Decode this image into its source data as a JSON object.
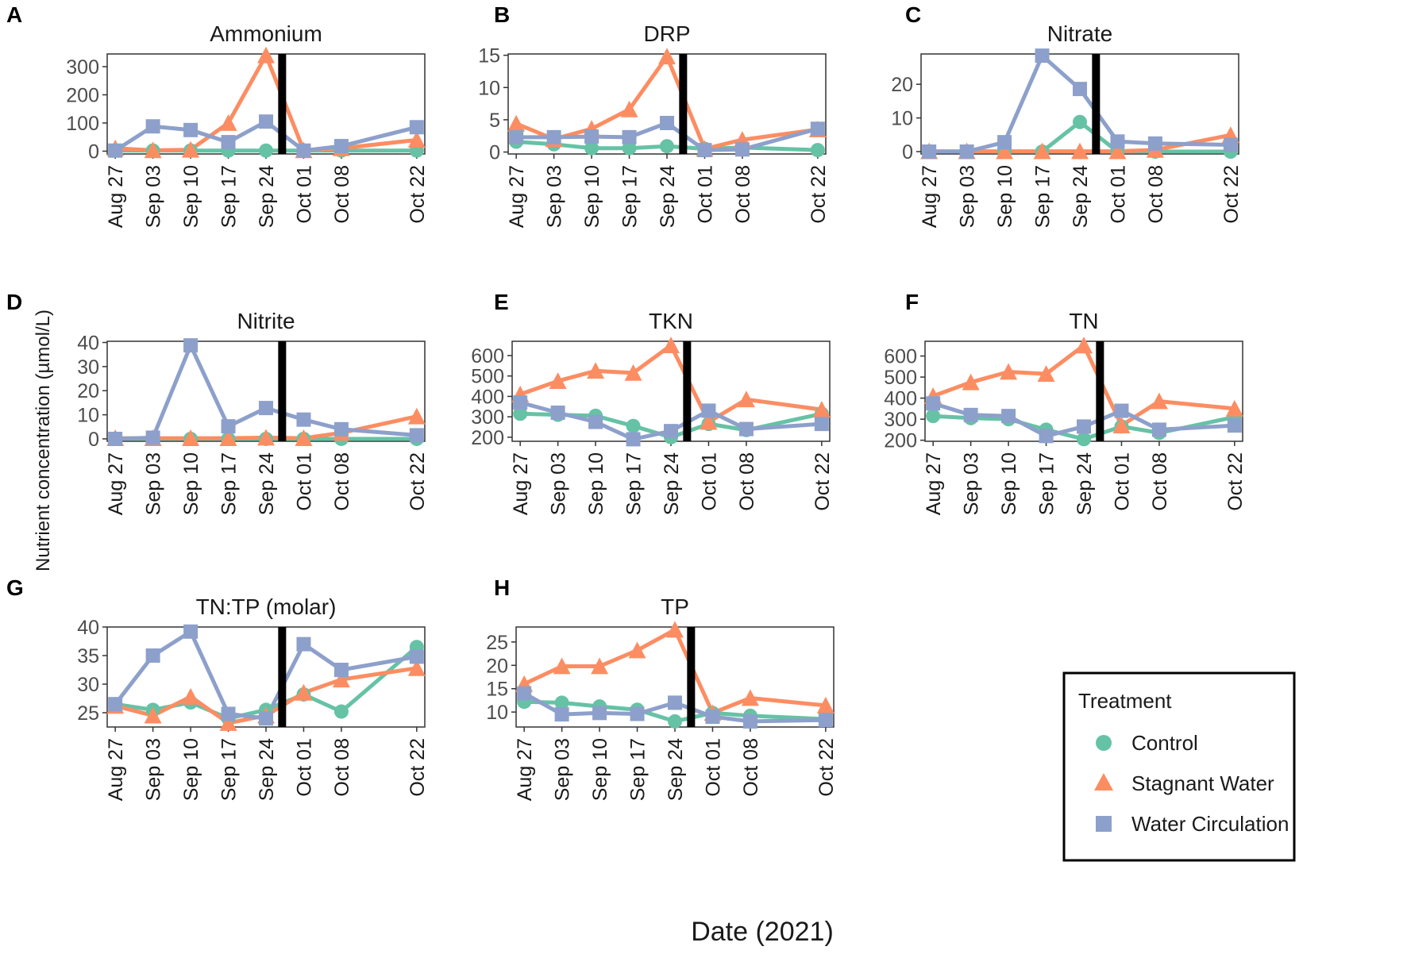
{
  "figure": {
    "xlabel": "Date (2021)",
    "ylabel": "Nutrient concentration (µmol/L)"
  },
  "legend": {
    "title": "Treatment",
    "entries": [
      {
        "name": "Control",
        "color": "#66c2a5",
        "marker": "circle"
      },
      {
        "name": "Stagnant Water",
        "color": "#fc8d62",
        "marker": "triangle"
      },
      {
        "name": "Water Circulation",
        "color": "#8da0cb",
        "marker": "square"
      }
    ]
  },
  "chart_data": [
    {
      "id": "A",
      "tag": "A",
      "type": "line",
      "title": "Ammonium",
      "x": [
        "Aug 27",
        "Sep 03",
        "Sep 10",
        "Sep 17",
        "Sep 24",
        "Oct 01",
        "Oct 08",
        "Oct 22"
      ],
      "x_days": [
        0,
        7,
        14,
        21,
        28,
        35,
        42,
        56
      ],
      "xlim": [
        -1.5,
        57.5
      ],
      "ylim": [
        -10,
        345
      ],
      "yticks": [
        0,
        100,
        200,
        300
      ],
      "intervention_day": 31,
      "series": [
        {
          "name": "Control",
          "values": [
            2,
            2,
            2,
            2,
            2,
            2,
            2,
            2
          ]
        },
        {
          "name": "Stagnant Water",
          "values": [
            10,
            3,
            5,
            100,
            340,
            3,
            10,
            40
          ]
        },
        {
          "name": "Water Circulation",
          "values": [
            2,
            88,
            75,
            32,
            105,
            2,
            18,
            85
          ]
        }
      ]
    },
    {
      "id": "B",
      "tag": "B",
      "type": "line",
      "title": "DRP",
      "x": [
        "Aug 27",
        "Sep 03",
        "Sep 10",
        "Sep 17",
        "Sep 24",
        "Oct 01",
        "Oct 08",
        "Oct 22"
      ],
      "x_days": [
        0,
        7,
        14,
        21,
        28,
        35,
        42,
        56
      ],
      "xlim": [
        -1.5,
        57.5
      ],
      "ylim": [
        -0.3,
        15.2
      ],
      "yticks": [
        0,
        5,
        10,
        15
      ],
      "intervention_day": 31,
      "series": [
        {
          "name": "Control",
          "values": [
            1.6,
            1.2,
            0.6,
            0.6,
            0.9,
            0.5,
            0.7,
            0.3
          ]
        },
        {
          "name": "Stagnant Water",
          "values": [
            4.4,
            2.0,
            3.6,
            6.6,
            14.8,
            0.5,
            1.9,
            3.5
          ]
        },
        {
          "name": "Water Circulation",
          "values": [
            2.3,
            2.3,
            2.4,
            2.3,
            4.5,
            0.3,
            0.4,
            3.6
          ]
        }
      ]
    },
    {
      "id": "C",
      "tag": "C",
      "type": "line",
      "title": "Nitrate",
      "x": [
        "Aug 27",
        "Sep 03",
        "Sep 10",
        "Sep 17",
        "Sep 24",
        "Oct 01",
        "Oct 08",
        "Oct 22"
      ],
      "x_days": [
        0,
        7,
        14,
        21,
        28,
        35,
        42,
        56
      ],
      "xlim": [
        -1.5,
        57.5
      ],
      "ylim": [
        -0.7,
        29
      ],
      "yticks": [
        0,
        10,
        20
      ],
      "intervention_day": 31,
      "series": [
        {
          "name": "Control",
          "values": [
            0,
            0,
            0,
            0,
            8.8,
            0,
            0,
            0
          ]
        },
        {
          "name": "Stagnant Water",
          "values": [
            0.1,
            0.1,
            0.1,
            0.1,
            0.1,
            0.1,
            0.5,
            4.9
          ]
        },
        {
          "name": "Water Circulation",
          "values": [
            0,
            0,
            2.8,
            28.5,
            18.6,
            3.0,
            2.4,
            2.0
          ]
        }
      ]
    },
    {
      "id": "D",
      "tag": "D",
      "type": "line",
      "title": "Nitrite",
      "x": [
        "Aug 27",
        "Sep 03",
        "Sep 10",
        "Sep 17",
        "Sep 24",
        "Oct 01",
        "Oct 08",
        "Oct 22"
      ],
      "x_days": [
        0,
        7,
        14,
        21,
        28,
        35,
        42,
        56
      ],
      "xlim": [
        -1.5,
        57.5
      ],
      "ylim": [
        -1,
        40.5
      ],
      "yticks": [
        0,
        10,
        20,
        30,
        40
      ],
      "intervention_day": 31,
      "series": [
        {
          "name": "Control",
          "values": [
            0,
            0,
            0,
            0,
            0,
            0,
            0,
            0
          ]
        },
        {
          "name": "Stagnant Water",
          "values": [
            0.3,
            0.3,
            0.3,
            0.3,
            0.5,
            0.3,
            2.5,
            9.3
          ]
        },
        {
          "name": "Water Circulation",
          "values": [
            0,
            0.5,
            38.8,
            5.2,
            12.8,
            8.0,
            4.0,
            1.5
          ]
        }
      ]
    },
    {
      "id": "E",
      "tag": "E",
      "type": "line",
      "title": "TKN",
      "x": [
        "Aug 27",
        "Sep 03",
        "Sep 10",
        "Sep 17",
        "Sep 24",
        "Oct 01",
        "Oct 08",
        "Oct 22"
      ],
      "x_days": [
        0,
        7,
        14,
        21,
        28,
        35,
        42,
        56
      ],
      "xlim": [
        -1.5,
        57.5
      ],
      "ylim": [
        180,
        670
      ],
      "yticks": [
        200,
        300,
        400,
        500,
        600
      ],
      "intervention_day": 31,
      "series": [
        {
          "name": "Control",
          "values": [
            315,
            310,
            305,
            255,
            200,
            265,
            235,
            315
          ]
        },
        {
          "name": "Stagnant Water",
          "values": [
            410,
            475,
            525,
            515,
            650,
            275,
            385,
            335
          ]
        },
        {
          "name": "Water Circulation",
          "values": [
            370,
            320,
            275,
            190,
            230,
            330,
            240,
            265
          ]
        }
      ]
    },
    {
      "id": "F",
      "tag": "F",
      "type": "line",
      "title": "TN",
      "x": [
        "Aug 27",
        "Sep 03",
        "Sep 10",
        "Sep 17",
        "Sep 24",
        "Oct 01",
        "Oct 08",
        "Oct 22"
      ],
      "x_days": [
        0,
        7,
        14,
        21,
        28,
        35,
        42,
        56
      ],
      "xlim": [
        -1.5,
        57.5
      ],
      "ylim": [
        195,
        670
      ],
      "yticks": [
        200,
        300,
        400,
        500,
        600
      ],
      "intervention_day": 31,
      "series": [
        {
          "name": "Control",
          "values": [
            315,
            305,
            300,
            250,
            205,
            265,
            235,
            310
          ]
        },
        {
          "name": "Stagnant Water",
          "values": [
            410,
            475,
            525,
            515,
            650,
            270,
            385,
            350
          ]
        },
        {
          "name": "Water Circulation",
          "values": [
            375,
            320,
            315,
            220,
            265,
            340,
            250,
            270
          ]
        }
      ]
    },
    {
      "id": "G",
      "tag": "G",
      "type": "line",
      "title": "TN:TP (molar)",
      "x": [
        "Aug 27",
        "Sep 03",
        "Sep 10",
        "Sep 17",
        "Sep 24",
        "Oct 01",
        "Oct 08",
        "Oct 22"
      ],
      "x_days": [
        0,
        7,
        14,
        21,
        28,
        35,
        42,
        56
      ],
      "xlim": [
        -1.5,
        57.5
      ],
      "ylim": [
        22.5,
        40
      ],
      "yticks": [
        25,
        30,
        35,
        40
      ],
      "intervention_day": 31,
      "series": [
        {
          "name": "Control",
          "values": [
            26.5,
            25.5,
            26.8,
            24.0,
            25.5,
            28.2,
            25.2,
            36.5
          ]
        },
        {
          "name": "Stagnant Water",
          "values": [
            26.2,
            24.5,
            27.8,
            23.2,
            24.5,
            28.5,
            30.8,
            32.8
          ]
        },
        {
          "name": "Water Circulation",
          "values": [
            26.5,
            35.0,
            39.2,
            24.8,
            24.0,
            37.0,
            32.5,
            34.8
          ]
        }
      ]
    },
    {
      "id": "H",
      "tag": "H",
      "type": "line",
      "title": "TP",
      "x": [
        "Aug 27",
        "Sep 03",
        "Sep 10",
        "Sep 17",
        "Sep 24",
        "Oct 01",
        "Oct 08",
        "Oct 22"
      ],
      "x_days": [
        0,
        7,
        14,
        21,
        28,
        35,
        42,
        56
      ],
      "xlim": [
        -1.5,
        57.5
      ],
      "ylim": [
        6.8,
        28.2
      ],
      "yticks": [
        10,
        15,
        20,
        25
      ],
      "intervention_day": 31,
      "series": [
        {
          "name": "Control",
          "values": [
            12.2,
            12.0,
            11.2,
            10.5,
            8.0,
            9.8,
            9.2,
            8.5
          ]
        },
        {
          "name": "Stagnant Water",
          "values": [
            16.0,
            19.8,
            19.8,
            23.2,
            27.6,
            9.8,
            13.0,
            11.4
          ]
        },
        {
          "name": "Water Circulation",
          "values": [
            14.0,
            9.5,
            9.8,
            9.6,
            12.0,
            9.0,
            8.0,
            8.3
          ]
        }
      ]
    }
  ]
}
